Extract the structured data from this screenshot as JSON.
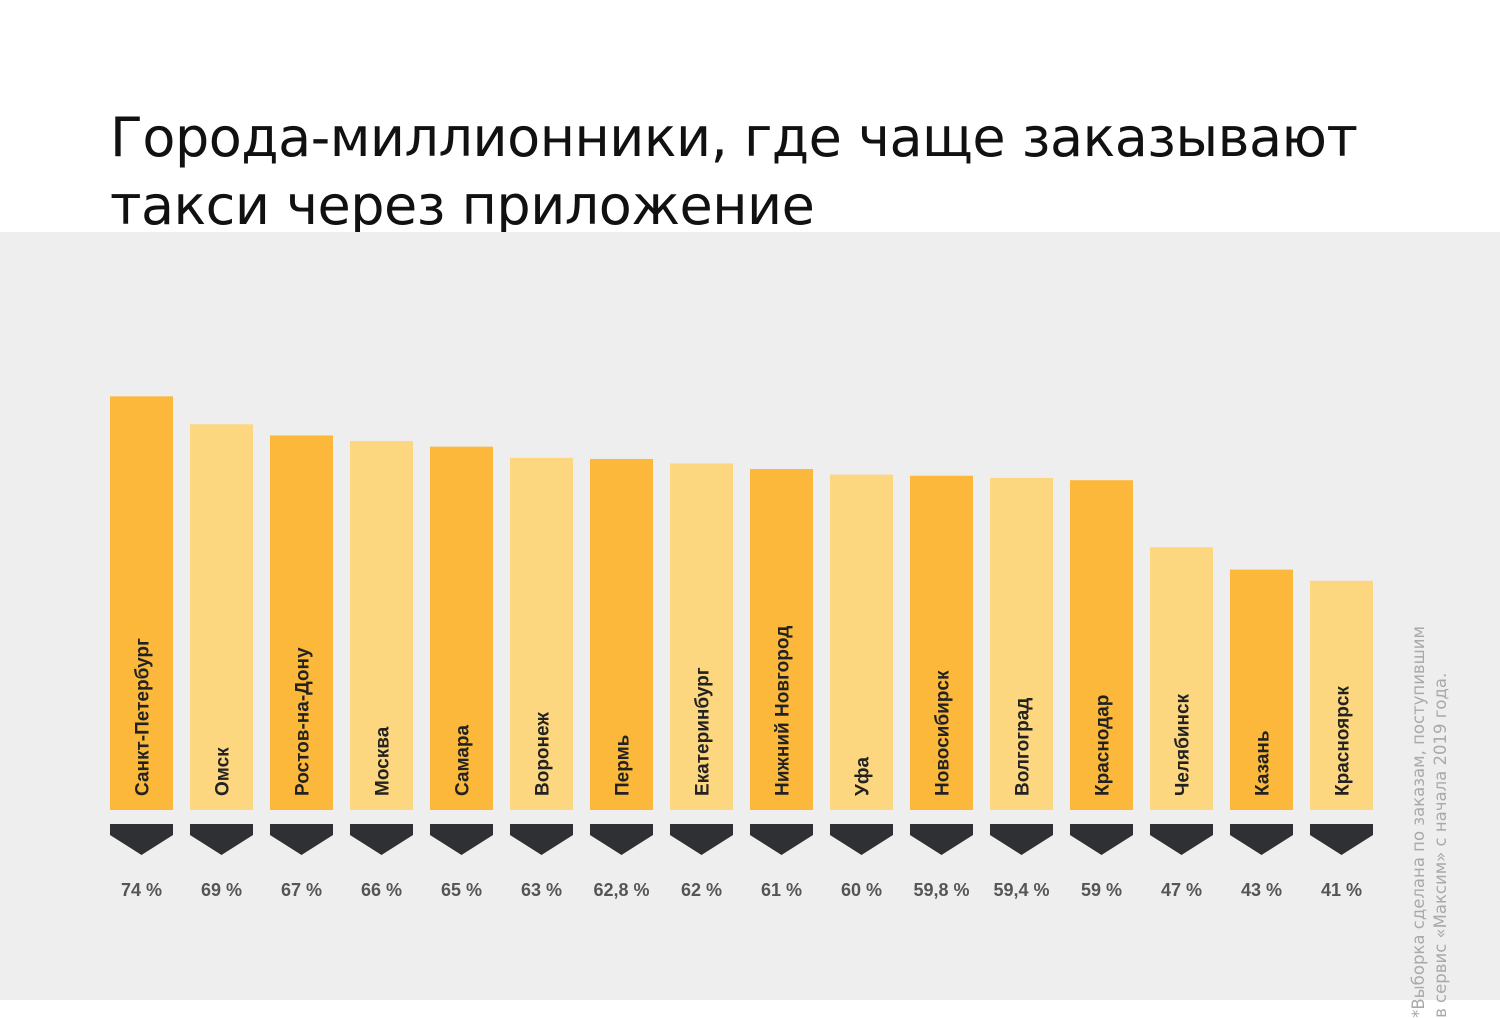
{
  "title": {
    "line1": "Города-миллионники, где чаще заказывают",
    "line2": "такси через приложение"
  },
  "footnote": {
    "line1": "*Выборка сделана по заказам, поступившим",
    "line2": "в сервис «Максим» с начала 2019 года."
  },
  "colors": {
    "bar_dark": "#fbb83b",
    "bar_light": "#fdd680",
    "marker": "#2f3034",
    "value_text": "#555555",
    "panel_bg": "#eeeeee"
  },
  "chart_data": {
    "type": "bar",
    "categories": [
      "Санкт-Петербург",
      "Омск",
      "Ростов-на-Дону",
      "Москва",
      "Самара",
      "Воронеж",
      "Пермь",
      "Екатеринбург",
      "Нижний Новгород",
      "Уфа",
      "Новосибирск",
      "Волгоград",
      "Краснодар",
      "Челябинск",
      "Казань",
      "Красноярск"
    ],
    "values": [
      74,
      69,
      67,
      66,
      65,
      63,
      62.8,
      62,
      61,
      60,
      59.8,
      59.4,
      59,
      47,
      43,
      41
    ],
    "value_labels": [
      "74 %",
      "69 %",
      "67 %",
      "66 %",
      "65 %",
      "63 %",
      "62,8 %",
      "62 %",
      "61 %",
      "60 %",
      "59,8 %",
      "59,4 %",
      "59 %",
      "47 %",
      "43 %",
      "41 %"
    ],
    "unit": "%",
    "ylim": [
      0,
      80
    ],
    "grid": false,
    "category_label_orientation": "vertical, inside bar",
    "color_pattern": "alternating dark/light orange"
  }
}
